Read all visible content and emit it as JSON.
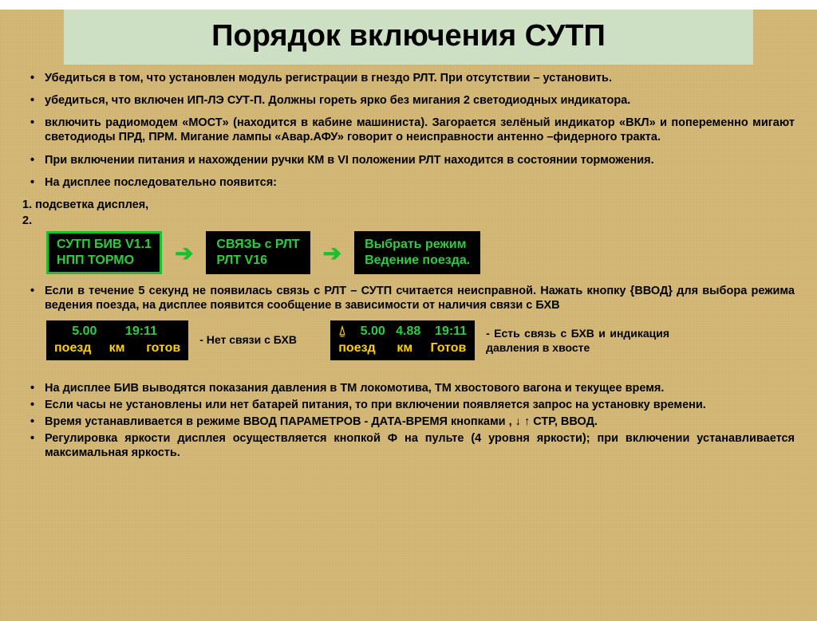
{
  "title": "Порядок включения СУТП",
  "bullets_top": [
    "Убедиться в том, что установлен модуль регистрации в гнездо РЛТ. При отсутствии – установить.",
    "убедиться, что включен ИП-ЛЭ СУТ-П. Должны гореть ярко без мигания 2 светодиодных индикатора.",
    "включить радиомодем «МОСТ» (находится в кабине машиниста). Загорается зелёный индикатор «ВКЛ» и попеременно мигают светодиоды  ПРД, ПРМ.  Мигание лампы «Авар.АФУ» говорит о неисправности антенно –фидерного тракта.",
    "При включении питания и нахождении ручки КМ в VI положении РЛТ находится в состоянии торможения.",
    "На дисплее последовательно появится:"
  ],
  "plain1": "1. подсветка дисплея,",
  "plain2": "2.",
  "box1": "СУТП БИВ V1.1\nНПП ТОРМО",
  "box2": "СВЯЗЬ с РЛТ\nРЛТ V16",
  "box3": "Выбрать режим\nВедение поезда.",
  "bullet_mid": "Если в течение 5 секунд не появилась связь с РЛТ – СУТП считается неисправной. Нажать кнопку {ВВОД} для выбора режима ведения поезда, на дисплее появится сообщение в зависимости от наличия связи с БХВ",
  "status1_l1": "     5.00        19:11",
  "status1_l2": "поезд     км      готов",
  "status1_caption": "- Нет связи с БХВ",
  "status2_ant": "⍙",
  "status2_l1": "    5.00   4.88    19:11",
  "status2_l2": "поезд      км     Готов",
  "status2_caption": "- Есть связь с БХВ и индикация давления в хвосте",
  "bullets_bottom": [
    "На дисплее БИВ выводятся показания давления в ТМ локомотива, ТМ хвостового вагона и текущее время.",
    "Если часы не установлены или нет батарей питания, то при включении появляется запрос на установку времени.",
    "Время устанавливается в режиме ВВОД ПАРАМЕТРОВ - ДАТА-ВРЕМЯ кнопками ,  ↓ ↑  СТР, ВВОД.",
    "Регулировка яркости дисплея осуществляется кнопкой Ф на пульте (4 уровня яркости); при включении устанавливается максимальная яркость."
  ]
}
